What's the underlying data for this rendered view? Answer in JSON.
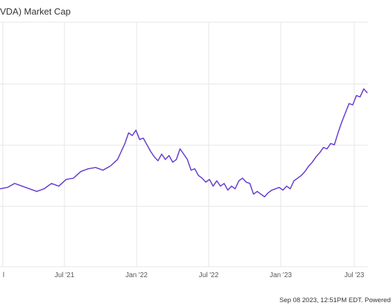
{
  "chart_title": "VDA) Market Cap",
  "footer_text": "Sep 08 2023, 12:51PM EDT.  Powered",
  "line_color": "#6a3fd0",
  "chart_data": {
    "type": "line",
    "title": "VDA) Market Cap",
    "xlabel": "",
    "ylabel": "",
    "x_tick_labels": [
      "l",
      "Jul '21",
      "Jan '22",
      "Jul '22",
      "Jan '23",
      "Jul '23"
    ],
    "grid": true,
    "legend": "none",
    "series": [
      {
        "points": [
          [
            0.0,
            0.58
          ],
          [
            0.02,
            0.59
          ],
          [
            0.04,
            0.62
          ],
          [
            0.06,
            0.6
          ],
          [
            0.08,
            0.58
          ],
          [
            0.1,
            0.56
          ],
          [
            0.12,
            0.58
          ],
          [
            0.14,
            0.62
          ],
          [
            0.16,
            0.6
          ],
          [
            0.18,
            0.65
          ],
          [
            0.2,
            0.66
          ],
          [
            0.22,
            0.71
          ],
          [
            0.24,
            0.73
          ],
          [
            0.26,
            0.74
          ],
          [
            0.28,
            0.72
          ],
          [
            0.3,
            0.75
          ],
          [
            0.32,
            0.8
          ],
          [
            0.34,
            0.92
          ],
          [
            0.35,
            1.0
          ],
          [
            0.36,
            0.98
          ],
          [
            0.37,
            1.02
          ],
          [
            0.38,
            0.95
          ],
          [
            0.39,
            0.96
          ],
          [
            0.4,
            0.91
          ],
          [
            0.41,
            0.86
          ],
          [
            0.42,
            0.82
          ],
          [
            0.43,
            0.79
          ],
          [
            0.44,
            0.84
          ],
          [
            0.45,
            0.8
          ],
          [
            0.46,
            0.83
          ],
          [
            0.47,
            0.78
          ],
          [
            0.48,
            0.8
          ],
          [
            0.49,
            0.88
          ],
          [
            0.5,
            0.84
          ],
          [
            0.51,
            0.8
          ],
          [
            0.52,
            0.72
          ],
          [
            0.53,
            0.73
          ],
          [
            0.54,
            0.68
          ],
          [
            0.55,
            0.66
          ],
          [
            0.56,
            0.63
          ],
          [
            0.57,
            0.65
          ],
          [
            0.58,
            0.6
          ],
          [
            0.59,
            0.64
          ],
          [
            0.6,
            0.6
          ],
          [
            0.61,
            0.62
          ],
          [
            0.62,
            0.57
          ],
          [
            0.63,
            0.6
          ],
          [
            0.64,
            0.58
          ],
          [
            0.65,
            0.64
          ],
          [
            0.66,
            0.66
          ],
          [
            0.67,
            0.63
          ],
          [
            0.68,
            0.62
          ],
          [
            0.69,
            0.54
          ],
          [
            0.7,
            0.56
          ],
          [
            0.71,
            0.54
          ],
          [
            0.72,
            0.52
          ],
          [
            0.73,
            0.55
          ],
          [
            0.74,
            0.57
          ],
          [
            0.75,
            0.58
          ],
          [
            0.76,
            0.59
          ],
          [
            0.77,
            0.57
          ],
          [
            0.78,
            0.6
          ],
          [
            0.79,
            0.58
          ],
          [
            0.8,
            0.64
          ],
          [
            0.81,
            0.66
          ],
          [
            0.82,
            0.68
          ],
          [
            0.83,
            0.71
          ],
          [
            0.84,
            0.75
          ],
          [
            0.85,
            0.78
          ],
          [
            0.86,
            0.82
          ],
          [
            0.87,
            0.85
          ],
          [
            0.88,
            0.89
          ],
          [
            0.89,
            0.88
          ],
          [
            0.9,
            0.92
          ],
          [
            0.91,
            0.91
          ],
          [
            0.92,
            1.0
          ],
          [
            0.93,
            1.08
          ],
          [
            0.94,
            1.15
          ],
          [
            0.95,
            1.22
          ],
          [
            0.96,
            1.21
          ],
          [
            0.97,
            1.28
          ],
          [
            0.98,
            1.27
          ],
          [
            0.99,
            1.33
          ],
          [
            1.0,
            1.3
          ]
        ]
      }
    ]
  }
}
